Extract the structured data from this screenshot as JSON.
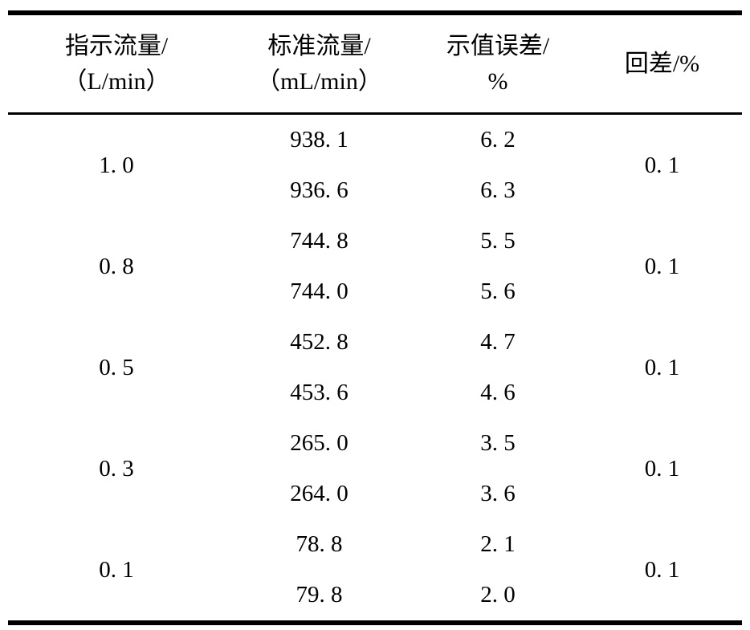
{
  "page": {
    "background_color": "#ffffff",
    "text_color": "#000000"
  },
  "table": {
    "columns": [
      {
        "label_line1": "指示流量/",
        "label_line2": "（L/min）"
      },
      {
        "label_line1": "标准流量/",
        "label_line2": "（mL/min）"
      },
      {
        "label_line1": "示值误差/",
        "label_line2": "%"
      },
      {
        "label_line1": "回差/%"
      }
    ],
    "groups": [
      {
        "indicated": "1. 0",
        "hysteresis": "0. 1",
        "rows": [
          {
            "standard": "938. 1",
            "error": "6. 2"
          },
          {
            "standard": "936. 6",
            "error": "6. 3"
          }
        ]
      },
      {
        "indicated": "0. 8",
        "hysteresis": "0. 1",
        "rows": [
          {
            "standard": "744. 8",
            "error": "5. 5"
          },
          {
            "standard": "744. 0",
            "error": "5. 6"
          }
        ]
      },
      {
        "indicated": "0. 5",
        "hysteresis": "0. 1",
        "rows": [
          {
            "standard": "452. 8",
            "error": "4. 7"
          },
          {
            "standard": "453. 6",
            "error": "4. 6"
          }
        ]
      },
      {
        "indicated": "0. 3",
        "hysteresis": "0. 1",
        "rows": [
          {
            "standard": "265. 0",
            "error": "3. 5"
          },
          {
            "standard": "264. 0",
            "error": "3. 6"
          }
        ]
      },
      {
        "indicated": "0. 1",
        "hysteresis": "0. 1",
        "rows": [
          {
            "standard": "78. 8",
            "error": "2. 1"
          },
          {
            "standard": "79. 8",
            "error": "2. 0"
          }
        ]
      }
    ]
  },
  "chart_data": {
    "type": "table",
    "columns": [
      "指示流量/（L/min）",
      "标准流量/（mL/min）",
      "示值误差/%",
      "回差/%"
    ],
    "rows": [
      [
        1.0,
        938.1,
        6.2,
        0.1
      ],
      [
        1.0,
        936.6,
        6.3,
        0.1
      ],
      [
        0.8,
        744.8,
        5.5,
        0.1
      ],
      [
        0.8,
        744.0,
        5.6,
        0.1
      ],
      [
        0.5,
        452.8,
        4.7,
        0.1
      ],
      [
        0.5,
        453.6,
        4.6,
        0.1
      ],
      [
        0.3,
        265.0,
        3.5,
        0.1
      ],
      [
        0.3,
        264.0,
        3.6,
        0.1
      ],
      [
        0.1,
        78.8,
        2.1,
        0.1
      ],
      [
        0.1,
        79.8,
        2.0,
        0.1
      ]
    ]
  }
}
